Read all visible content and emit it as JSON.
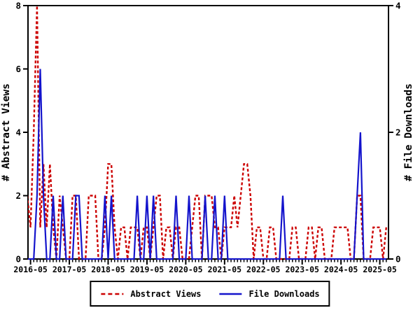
{
  "figure": {
    "background": "#ffffff",
    "axis_color": "#000000",
    "text_color": "#000000"
  },
  "chart_data": {
    "type": "line",
    "x_start_month": "2016-04",
    "x_step_months": 1,
    "x_points": 112,
    "x_tick_labels": [
      "2016-05",
      "2017-05",
      "2018-05",
      "2019-05",
      "2020-05",
      "2021-05",
      "2022-05",
      "2023-05",
      "2024-05",
      "2025-05"
    ],
    "left_axis": {
      "label": "# Abstract Views",
      "range": [
        0,
        8
      ],
      "ticks": [
        "0",
        "2",
        "4",
        "6",
        "8"
      ]
    },
    "right_axis": {
      "label": "# File Downloads",
      "range": [
        0,
        4
      ],
      "ticks": [
        "0",
        "2",
        "4"
      ]
    },
    "grid": "off",
    "legend_position": "bottom-center",
    "series": [
      {
        "name": "Abstract Views",
        "axis": "left",
        "color": "#cc0000",
        "line_style": "dashed",
        "values": [
          2,
          1,
          4,
          8,
          1,
          3,
          1,
          3,
          1,
          0,
          2,
          1,
          0,
          0,
          2,
          2,
          0,
          0,
          0,
          2,
          2,
          2,
          0,
          0,
          1,
          3,
          3,
          1,
          0,
          1,
          1,
          0,
          1,
          1,
          1,
          0,
          1,
          1,
          0,
          1,
          2,
          2,
          0,
          1,
          1,
          0,
          1,
          1,
          0,
          0,
          0,
          1,
          2,
          2,
          0,
          2,
          2,
          2,
          1,
          1,
          0,
          1,
          1,
          1,
          2,
          1,
          2,
          3,
          3,
          2,
          0,
          1,
          1,
          0,
          0,
          1,
          1,
          0,
          0,
          0,
          0,
          0,
          1,
          1,
          0,
          0,
          0,
          1,
          1,
          0,
          1,
          1,
          0,
          0,
          0,
          1,
          1,
          1,
          1,
          1,
          0,
          0,
          2,
          2,
          0,
          0,
          0,
          1,
          1,
          1,
          0,
          1
        ]
      },
      {
        "name": "File Downloads",
        "axis": "right",
        "color": "#1414cc",
        "line_style": "solid",
        "values": [
          0,
          0,
          0,
          1,
          3,
          1,
          0,
          0,
          1,
          0,
          0,
          1,
          0,
          0,
          0,
          1,
          1,
          0,
          0,
          0,
          0,
          0,
          0,
          0,
          1,
          0,
          1,
          0,
          0,
          0,
          0,
          0,
          0,
          0,
          1,
          0,
          0,
          1,
          0,
          1,
          0,
          0,
          0,
          0,
          0,
          0,
          1,
          0,
          0,
          0,
          1,
          0,
          0,
          0,
          0,
          1,
          0,
          0,
          1,
          0,
          0,
          1,
          0,
          0,
          0,
          0,
          0,
          0,
          0,
          0,
          0,
          0,
          0,
          0,
          0,
          0,
          0,
          0,
          0,
          1,
          0,
          0,
          0,
          0,
          0,
          0,
          0,
          0,
          0,
          0,
          0,
          0,
          0,
          0,
          0,
          0,
          0,
          0,
          0,
          0,
          0,
          0,
          1,
          2,
          0,
          0,
          0,
          0,
          0,
          0,
          0,
          0
        ]
      }
    ]
  }
}
